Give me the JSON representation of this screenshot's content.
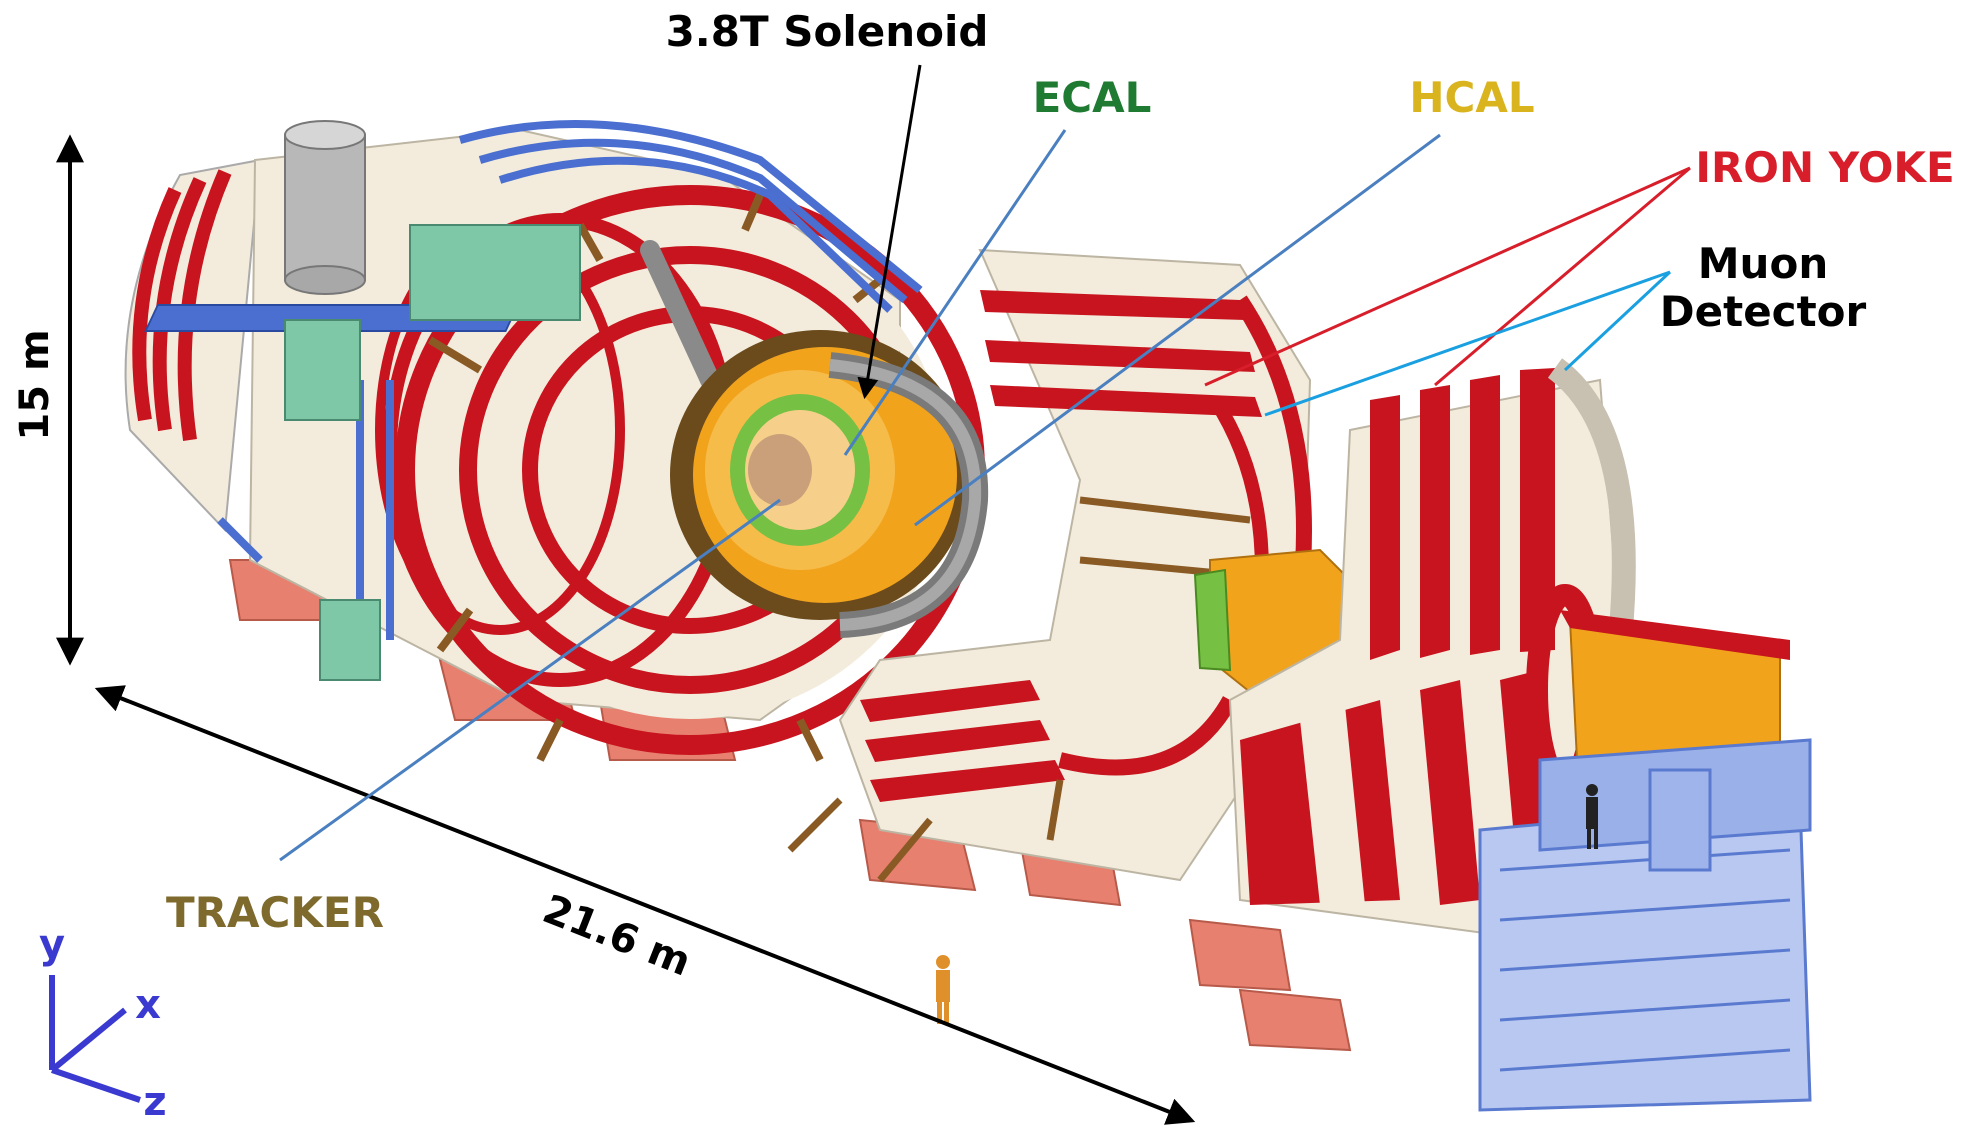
{
  "labels": {
    "solenoid": "3.8T Solenoid",
    "ecal": "ECAL",
    "hcal": "HCAL",
    "iron_yoke": "IRON YOKE",
    "muon_line1": "Muon",
    "muon_line2": "Detector",
    "tracker": "TRACKER",
    "height_dim": "15 m",
    "length_dim": "21.6 m",
    "axis_y": "y",
    "axis_x": "x",
    "axis_z": "z"
  },
  "colors": {
    "solenoid": "#000000",
    "ecal": "#1f7a32",
    "hcal": "#d9b41f",
    "iron_yoke": "#d81e2a",
    "muon": "#000000",
    "tracker": "#7d6a2c",
    "axes": "#3a3ad0",
    "dimension": "#000000",
    "leader_ecal": "#4a7fc0",
    "leader_hcal": "#4a7fc0",
    "leader_tracker": "#4a7fc0",
    "leader_yoke": "#d81e2a",
    "leader_muon": "#1aa0e0",
    "yoke_red": "#c8141e",
    "yoke_cream": "#f3ecdc",
    "support_blue": "#4a6fd0",
    "feet": "#e88070",
    "hcal_fill": "#f2a31c",
    "ecal_fill": "#76c043"
  }
}
